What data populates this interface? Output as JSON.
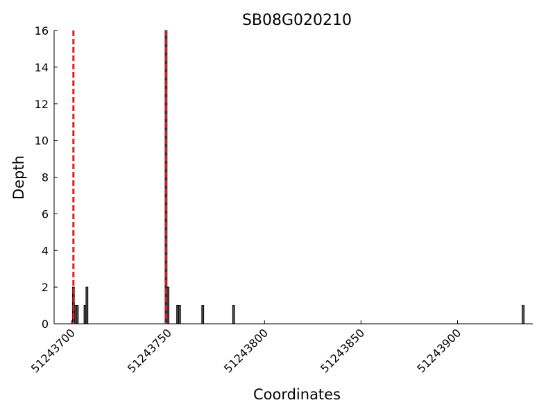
{
  "chart_data": {
    "type": "bar",
    "title": "SB08G020210",
    "x_label": "Coordinates",
    "y_label": "Depth",
    "x": [
      51243701,
      51243702,
      51243703,
      51243707,
      51243708,
      51243749,
      51243750,
      51243755,
      51243756,
      51243768,
      51243784,
      51243934
    ],
    "values": [
      2,
      1,
      1,
      1,
      2,
      16,
      2,
      1,
      1,
      1,
      1,
      1
    ],
    "color": "#555555",
    "xlim": [
      51243691,
      51243939
    ],
    "ylim": [
      0,
      16
    ],
    "xticks": [
      51243700,
      51243750,
      51243800,
      51243850,
      51243900
    ],
    "yticks": [
      0,
      2,
      4,
      6,
      8,
      10,
      12,
      14,
      16
    ],
    "vlines": [
      51243701,
      51243749
    ],
    "vline_color": "#e31a1c",
    "grid": false
  }
}
